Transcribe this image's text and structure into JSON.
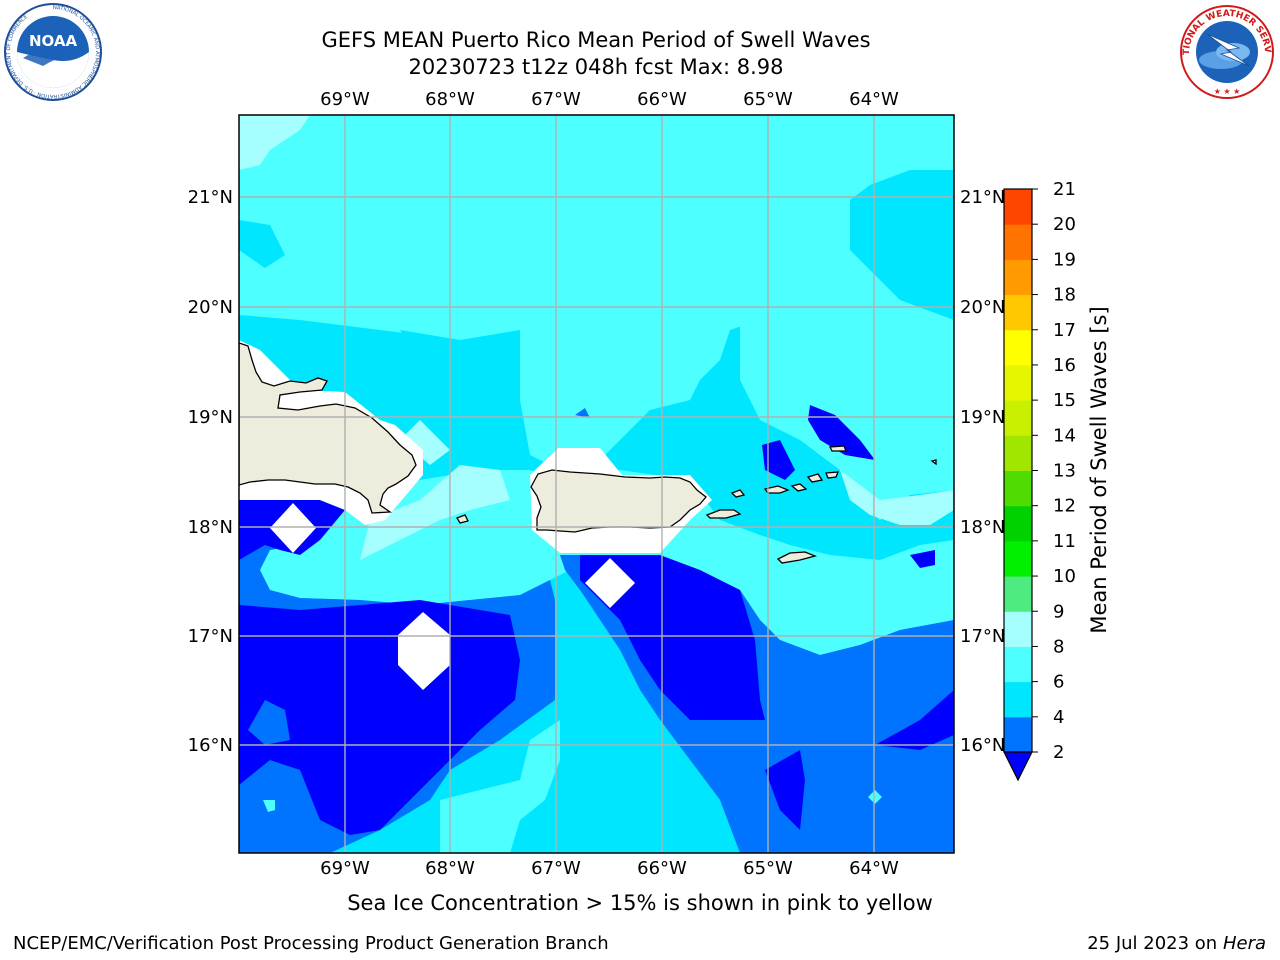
{
  "header": {
    "title_line1": "GEFS MEAN Puerto Rico Mean Period of Swell Waves",
    "title_line2": "20230723 t12z 048h fcst   Max: 8.98"
  },
  "logos": {
    "left": {
      "icon": "noaa-logo-icon",
      "text": "NOAA",
      "ring_text": "NATIONAL OCEANIC AND ATMOSPHERIC ADMINISTRATION · U.S. DEPARTMENT OF COMMERCE"
    },
    "right": {
      "icon": "nws-logo-icon",
      "ring_text": "NATIONAL WEATHER SERVICE"
    }
  },
  "map": {
    "lon_labels": [
      "69°W",
      "68°W",
      "67°W",
      "66°W",
      "65°W",
      "64°W"
    ],
    "lat_labels": [
      "21°N",
      "20°N",
      "19°N",
      "18°N",
      "17°N",
      "16°N"
    ],
    "land_color": "#eeecdc",
    "grid_color": "#b0b0b0"
  },
  "colorbar": {
    "label": "Mean Period of Swell Waves [s]",
    "ticks": [
      "2",
      "4",
      "6",
      "8",
      "9",
      "10",
      "11",
      "12",
      "13",
      "14",
      "15",
      "16",
      "17",
      "18",
      "19",
      "20",
      "21"
    ],
    "colors": [
      "#0073ff",
      "#00e6ff",
      "#4dffff",
      "#a5ffff",
      "#4deb80",
      "#00f000",
      "#00d200",
      "#50dc00",
      "#a0e600",
      "#c8f000",
      "#e6f500",
      "#ffff00",
      "#ffc800",
      "#ff9b00",
      "#ff7300",
      "#ff4600",
      "#ff0000"
    ],
    "under_color": "#0000ff"
  },
  "contour_colors": {
    "lt2": "#0000ff",
    "c2_4": "#0073ff",
    "c4_6": "#00e6ff",
    "c6_8": "#4dffff",
    "c8_9": "#a5ffff"
  },
  "footer": {
    "note": "Sea Ice Concentration > 15% is shown in pink to yellow",
    "left": "NCEP/EMC/Verification Post Processing Product Generation Branch",
    "date": "25 Jul 2023 on ",
    "host": "Hera"
  }
}
